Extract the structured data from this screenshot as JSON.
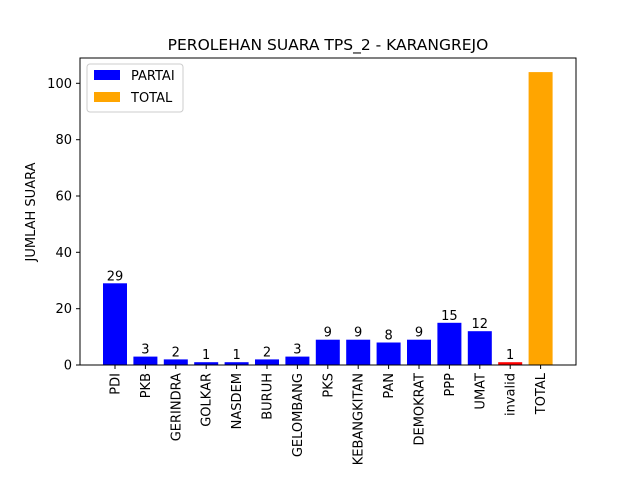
{
  "chart_data": {
    "type": "bar",
    "title": "PEROLEHAN SUARA TPS_2 - KARANGREJO",
    "xlabel": "",
    "ylabel": "JUMLAH SUARA",
    "ylim": [
      0,
      109
    ],
    "yticks": [
      0,
      20,
      40,
      60,
      80,
      100
    ],
    "grid": false,
    "legend_position": "top-left",
    "categories": [
      "PDI",
      "PKB",
      "GERINDRA",
      "GOLKAR",
      "NASDEM",
      "BURUH",
      "GELOMBANG",
      "PKS",
      "KEBANGKITAN",
      "PAN",
      "DEMOKRAT",
      "PPP",
      "UMAT",
      "invalid",
      "TOTAL"
    ],
    "values": [
      29,
      3,
      2,
      1,
      1,
      2,
      3,
      9,
      9,
      8,
      9,
      15,
      12,
      1,
      104
    ],
    "bar_colors": [
      "#0000ff",
      "#0000ff",
      "#0000ff",
      "#0000ff",
      "#0000ff",
      "#0000ff",
      "#0000ff",
      "#0000ff",
      "#0000ff",
      "#0000ff",
      "#0000ff",
      "#0000ff",
      "#0000ff",
      "#ff0000",
      "#ffa500"
    ],
    "value_labels": [
      "29",
      "3",
      "2",
      "1",
      "1",
      "2",
      "3",
      "9",
      "9",
      "8",
      "9",
      "15",
      "12",
      "1",
      ""
    ],
    "legend": [
      {
        "name": "PARTAI",
        "color": "#0000ff"
      },
      {
        "name": "TOTAL",
        "color": "#ffa500"
      }
    ]
  }
}
